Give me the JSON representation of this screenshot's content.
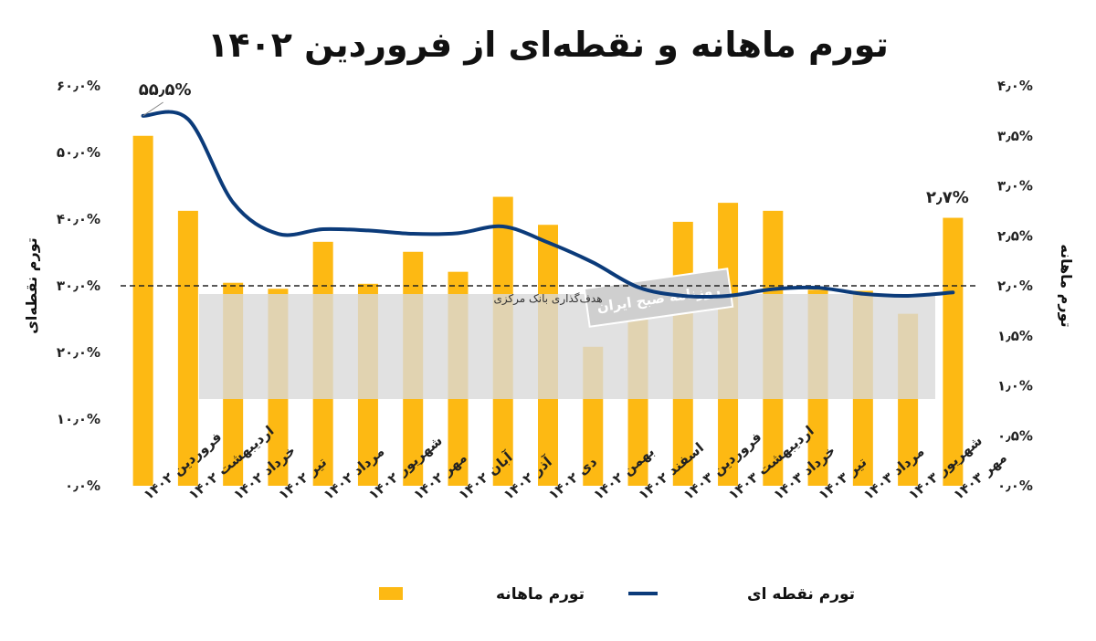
{
  "chart_data": {
    "type": "bar",
    "title": "تورم ماهانه و نقطه‌ای از فروردین ۱۴۰۲",
    "categories": [
      "فروردین ۱۴۰۲",
      "اردیبهشت ۱۴۰۲",
      "خرداد ۱۴۰۲",
      "تیر ۱۴۰۲",
      "مرداد ۱۴۰۲",
      "شهریور ۱۴۰۲",
      "مهر ۱۴۰۲",
      "آبان ۱۴۰۲",
      "آذر ۱۴۰۲",
      "دی ۱۴۰۲",
      "بهمن ۱۴۰۲",
      "اسفند ۱۴۰۲",
      "فروردین ۱۴۰۳",
      "اردیبهشت ۱۴۰۳",
      "خرداد ۱۴۰۳",
      "تیر ۱۴۰۳",
      "مرداد ۱۴۰۳",
      "شهریور ۱۴۰۳",
      "مهر ۱۴۰۳"
    ],
    "series": [
      {
        "name": "تورم ماهانه",
        "type": "bar",
        "axis": "right",
        "values": [
          3.5,
          2.75,
          2.03,
          1.97,
          2.44,
          2.02,
          2.34,
          2.14,
          2.89,
          2.61,
          1.39,
          1.98,
          2.64,
          2.83,
          2.75,
          1.96,
          1.95,
          1.72,
          2.68
        ]
      },
      {
        "name": "تورم نقطه ای",
        "type": "line",
        "axis": "left",
        "values": [
          55.5,
          55.0,
          42.5,
          37.8,
          38.5,
          38.3,
          37.8,
          37.9,
          38.9,
          36.5,
          33.5,
          29.8,
          28.5,
          28.5,
          29.5,
          29.7,
          28.8,
          28.5,
          29.0
        ]
      }
    ],
    "y_left": {
      "label": "تورم نقطه‌ای",
      "ylim": [
        0,
        60
      ],
      "ticks": [
        "۰٫۰%",
        "۱۰٫۰%",
        "۲۰٫۰%",
        "۳۰٫۰%",
        "۴۰٫۰%",
        "۵۰٫۰%",
        "۶۰٫۰%"
      ]
    },
    "y_right": {
      "label": "تورم ماهانه",
      "ylim": [
        0,
        4
      ],
      "ticks": [
        "۰٫۰%",
        "۰٫۵%",
        "۱٫۰%",
        "۱٫۵%",
        "۲٫۰%",
        "۲٫۵%",
        "۳٫۰%",
        "۳٫۵%",
        "۴٫۰%"
      ]
    },
    "target": {
      "value_right_axis": 2.0,
      "label": "هدف‌گذاری بانک مرکزی"
    },
    "data_labels": [
      {
        "index": 0,
        "text": "۵۵٫۵%"
      },
      {
        "index": 18,
        "text": "۲٫۷%"
      }
    ],
    "watermark": "روزنامه صبح ایران",
    "legend": {
      "position": "bottom",
      "bar_label": "تورم ماهانه",
      "line_label": "تورم نقطه ای"
    },
    "colors": {
      "bar": "#FDB913",
      "line": "#0B3B7A",
      "target": "#222222"
    }
  }
}
